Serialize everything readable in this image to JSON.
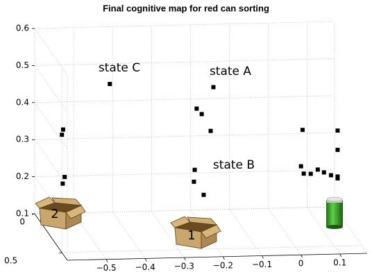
{
  "chart_data": {
    "type": "scatter3d",
    "title": "Final cognitive map for red can sorting",
    "x": [
      -0.435,
      -0.169,
      -0.212,
      -0.199,
      -0.176,
      -0.217,
      -0.219,
      -0.194,
      -0.555,
      -0.558,
      -0.551,
      -0.556,
      0.06,
      0.15,
      0.15,
      0.056,
      0.063,
      0.081,
      0.099,
      0.115,
      0.133,
      0.15,
      0.15
    ],
    "y": [
      0.2,
      0.2,
      0.2,
      0.2,
      0.2,
      0.2,
      0.2,
      0.2,
      0.2,
      0.2,
      0.2,
      0.2,
      0.2,
      0.2,
      0.2,
      0.2,
      0.2,
      0.2,
      0.2,
      0.2,
      0.2,
      0.2,
      0.2
    ],
    "z": [
      0.488,
      0.473,
      0.416,
      0.401,
      0.355,
      0.251,
      0.219,
      0.183,
      0.368,
      0.354,
      0.24,
      0.222,
      0.352,
      0.348,
      0.296,
      0.254,
      0.234,
      0.233,
      0.244,
      0.236,
      0.228,
      0.224,
      0.219
    ],
    "color": "#000000",
    "xlim": [
      -0.6,
      0.17
    ],
    "ylim": [
      0,
      0.6
    ],
    "zlim": [
      0.1,
      0.6
    ],
    "xticks": [
      {
        "value": -0.5,
        "label": "−0.5"
      },
      {
        "value": -0.4,
        "label": "−0.4"
      },
      {
        "value": -0.3,
        "label": "−0.3"
      },
      {
        "value": -0.2,
        "label": "−0.2"
      },
      {
        "value": -0.1,
        "label": "−0.1"
      },
      0,
      0.1
    ],
    "yticks": [
      0,
      0.5
    ],
    "zticks": [
      0.1,
      0.2,
      0.3,
      0.4,
      0.5,
      0.6
    ],
    "grid": true,
    "annotations": [
      "state C",
      "state A",
      "state B"
    ],
    "box_labels": [
      "2",
      "1"
    ]
  }
}
